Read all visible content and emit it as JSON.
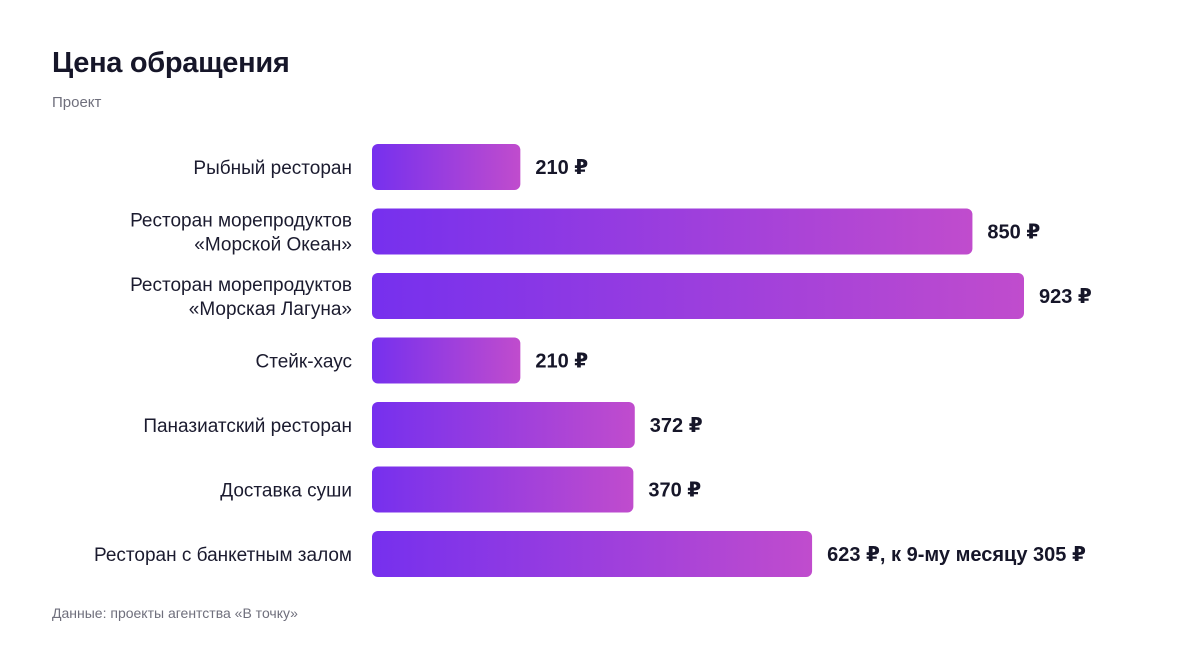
{
  "header": {
    "title": "Цена обращения",
    "subtitle": "Проект"
  },
  "footer": {
    "source": "Данные: проекты агентства «В точку»"
  },
  "colors": {
    "bar_gradient_start": "#7630ee",
    "bar_gradient_end": "#c04ccd",
    "text": "#161629",
    "muted": "#6f6f7c"
  },
  "chart_data": {
    "type": "bar",
    "orientation": "horizontal",
    "title": "Цена обращения",
    "subtitle": "Проект",
    "currency": "₽",
    "categories": [
      [
        "Рыбный ресторан"
      ],
      [
        "Ресторан морепродуктов",
        "«Морской Океан»"
      ],
      [
        "Ресторан морепродуктов",
        "«Морская Лагуна»"
      ],
      [
        "Стейк-хаус"
      ],
      [
        "Паназиатский ресторан"
      ],
      [
        "Доставка суши"
      ],
      [
        "Ресторан с банкетным залом"
      ]
    ],
    "values": [
      210,
      850,
      923,
      210,
      372,
      370,
      623
    ],
    "value_labels": [
      "210 ₽",
      "850 ₽",
      "923 ₽",
      "210 ₽",
      "372 ₽",
      "370 ₽",
      "623 ₽, к 9-му месяцу 305 ₽"
    ],
    "xlim": [
      0,
      923
    ],
    "grid": false,
    "legend": "none"
  }
}
